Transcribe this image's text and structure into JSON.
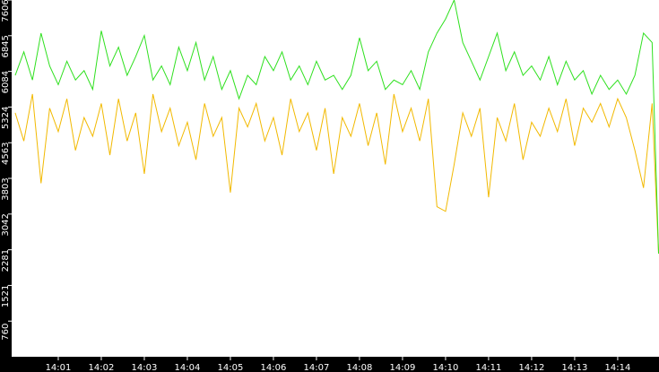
{
  "chart_data": {
    "type": "line",
    "x": [
      0,
      0.2,
      0.4,
      0.6,
      0.8,
      1,
      1.2,
      1.4,
      1.6,
      1.8,
      2,
      2.2,
      2.4,
      2.6,
      2.8,
      3,
      3.2,
      3.4,
      3.6,
      3.8,
      4,
      4.2,
      4.4,
      4.6,
      4.8,
      5,
      5.2,
      5.4,
      5.6,
      5.8,
      6,
      6.2,
      6.4,
      6.6,
      6.8,
      7,
      7.2,
      7.4,
      7.6,
      7.8,
      8,
      8.2,
      8.4,
      8.6,
      8.8,
      9,
      9.2,
      9.4,
      9.6,
      9.8,
      10,
      10.2,
      10.4,
      10.6,
      10.8,
      11,
      11.2,
      11.4,
      11.6,
      11.8,
      12,
      12.2,
      12.4,
      12.6,
      12.8,
      13,
      13.2,
      13.4,
      13.6,
      13.8,
      14,
      14.2,
      14.4,
      14.6,
      14.8,
      14.95
    ],
    "series": [
      {
        "color": "#f2b900",
        "values": [
          5200,
          4600,
          5600,
          3700,
          5300,
          4800,
          5500,
          4400,
          5100,
          4700,
          5400,
          4300,
          5500,
          4600,
          5200,
          3900,
          5600,
          4800,
          5300,
          4500,
          5000,
          4200,
          5400,
          4700,
          5100,
          3500,
          5300,
          4900,
          5400,
          4600,
          5100,
          4300,
          5500,
          4800,
          5200,
          4400,
          5300,
          3900,
          5100,
          4700,
          5400,
          4500,
          5200,
          4100,
          5600,
          4800,
          5300,
          4600,
          5500,
          3200,
          3100,
          4100,
          5200,
          4700,
          5300,
          3400,
          5100,
          4600,
          5400,
          4200,
          5000,
          4700,
          5300,
          4800,
          5500,
          4500,
          5300,
          5000,
          5400,
          4900,
          5500,
          5100,
          4400,
          3600,
          5400,
          2200
        ]
      },
      {
        "color": "#2ee01e",
        "values": [
          6000,
          6500,
          5900,
          6900,
          6200,
          5800,
          6300,
          5900,
          6100,
          5700,
          6950,
          6200,
          6600,
          6000,
          6400,
          6850,
          5900,
          6200,
          5800,
          6600,
          6100,
          6700,
          5900,
          6400,
          5700,
          6100,
          5500,
          6000,
          5800,
          6400,
          6100,
          6500,
          5900,
          6200,
          5800,
          6300,
          5900,
          6000,
          5700,
          6000,
          6800,
          6100,
          6300,
          5700,
          5900,
          5800,
          6100,
          5700,
          6500,
          6900,
          7200,
          7606,
          6700,
          6300,
          5900,
          6400,
          6900,
          6100,
          6500,
          6000,
          6200,
          5900,
          6400,
          5800,
          6300,
          5900,
          6100,
          5600,
          6000,
          5700,
          5900,
          5600,
          6000,
          6900,
          6700,
          2200
        ]
      }
    ],
    "xlim": [
      -0.083,
      14.96
    ],
    "xticks": [
      {
        "value": 1,
        "label": "14:01"
      },
      {
        "value": 2,
        "label": "14:02"
      },
      {
        "value": 3,
        "label": "14:03"
      },
      {
        "value": 4,
        "label": "14:04"
      },
      {
        "value": 5,
        "label": "14:05"
      },
      {
        "value": 6,
        "label": "14:06"
      },
      {
        "value": 7,
        "label": "14:07"
      },
      {
        "value": 8,
        "label": "14:08"
      },
      {
        "value": 9,
        "label": "14:09"
      },
      {
        "value": 10,
        "label": "14:10"
      },
      {
        "value": 11,
        "label": "14:11"
      },
      {
        "value": 12,
        "label": "14:12"
      },
      {
        "value": 13,
        "label": "14:13"
      },
      {
        "value": 14,
        "label": "14:14"
      }
    ],
    "ylim": [
      0,
      7606
    ],
    "yticks": [
      760,
      1521,
      2281,
      3042,
      3803,
      4563,
      5324,
      6084,
      6845,
      7606
    ]
  }
}
